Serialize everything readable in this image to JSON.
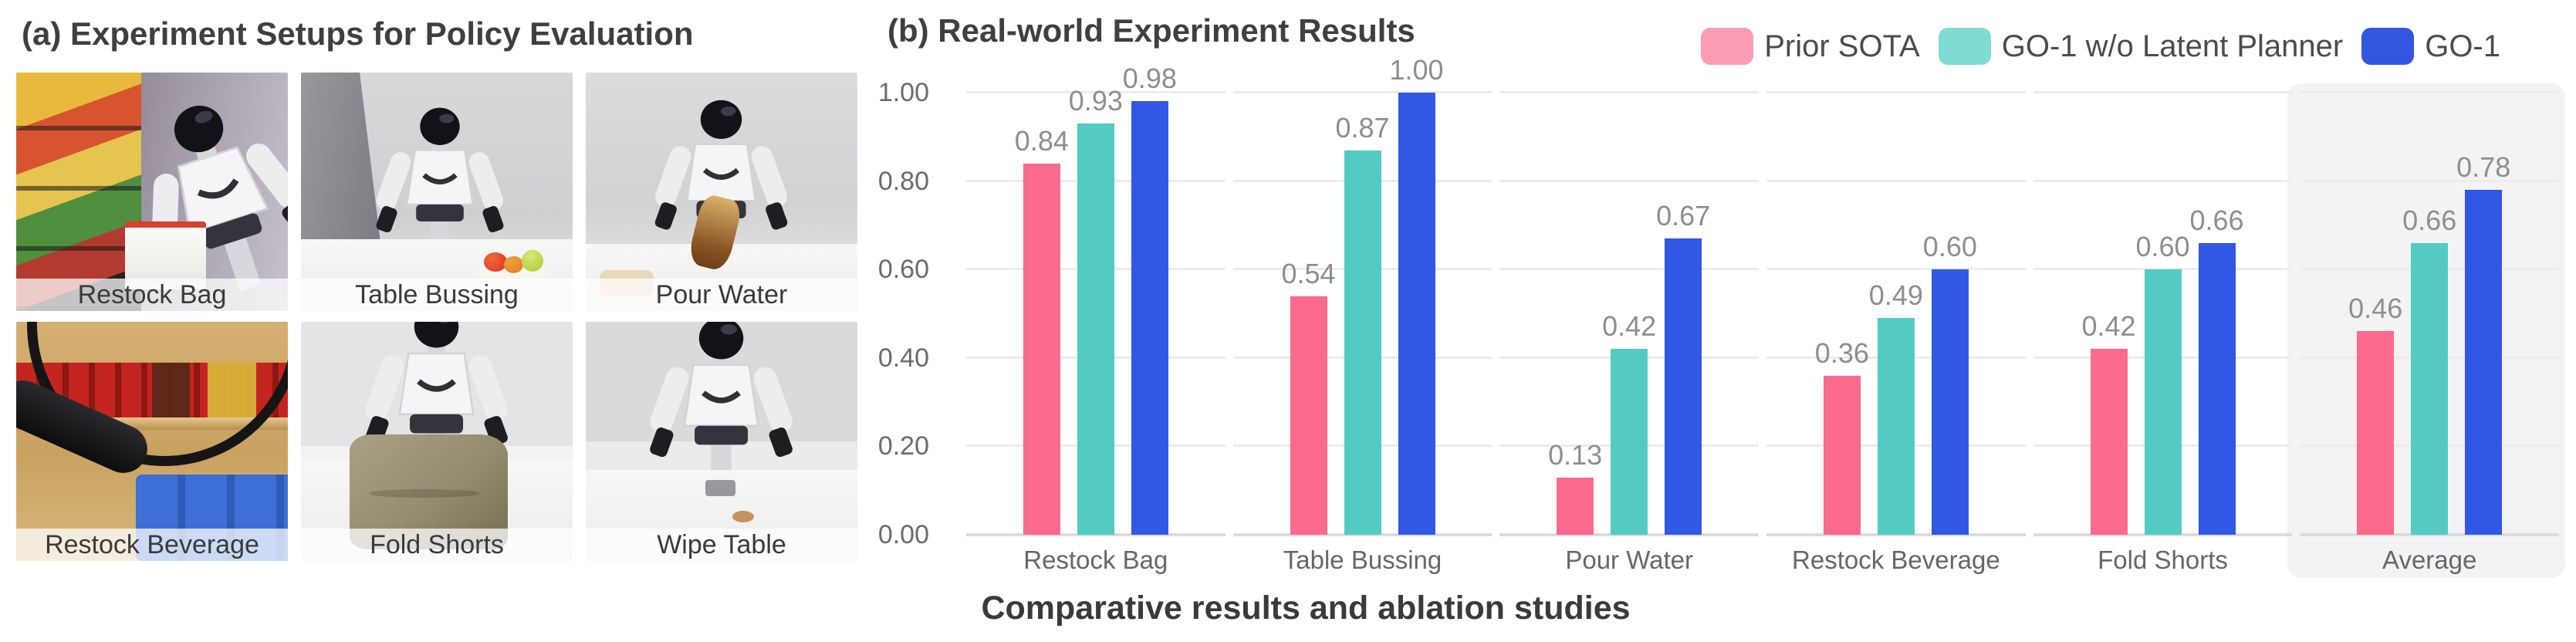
{
  "panel_a": {
    "title": "(a) Experiment Setups for Policy Evaluation",
    "photos": [
      {
        "label": "Restock Bag"
      },
      {
        "label": "Table Bussing"
      },
      {
        "label": "Pour Water"
      },
      {
        "label": "Restock Beverage"
      },
      {
        "label": "Fold Shorts"
      },
      {
        "label": "Wipe Table"
      }
    ]
  },
  "panel_b": {
    "title": "(b) Real-world Experiment Results",
    "caption": "Comparative results and ablation studies",
    "legend": [
      {
        "label": "Prior SOTA",
        "swatch_color": "#FC9CB4"
      },
      {
        "label": "GO-1 w/o Latent Planner",
        "swatch_color": "#7EDAD2"
      },
      {
        "label": "GO-1",
        "swatch_color": "#3156DF"
      }
    ]
  },
  "chart_data": {
    "type": "bar",
    "title": "(b) Real-world Experiment Results",
    "categories": [
      "Restock Bag",
      "Table Bussing",
      "Pour Water",
      "Restock Beverage",
      "Fold Shorts",
      "Average"
    ],
    "series": [
      {
        "name": "Prior SOTA",
        "color": "#FA6A8C",
        "values": [
          0.84,
          0.54,
          0.13,
          0.36,
          0.42,
          0.46
        ]
      },
      {
        "name": "GO-1 w/o Latent Planner",
        "color": "#53CBC2",
        "values": [
          0.93,
          0.87,
          0.42,
          0.49,
          0.6,
          0.66
        ]
      },
      {
        "name": "GO-1",
        "color": "#3058E4",
        "values": [
          0.98,
          1.0,
          0.67,
          0.6,
          0.66,
          0.78
        ]
      }
    ],
    "ylim": [
      0,
      1.0
    ],
    "yticks": [
      "0.00",
      "0.20",
      "0.40",
      "0.60",
      "0.80",
      "1.00"
    ],
    "grid": true,
    "legend_position": "top-right",
    "value_labels": true,
    "highlight_category": "Average",
    "highlight_bg": "#f3f3f5",
    "xlabel": "",
    "ylabel": ""
  }
}
